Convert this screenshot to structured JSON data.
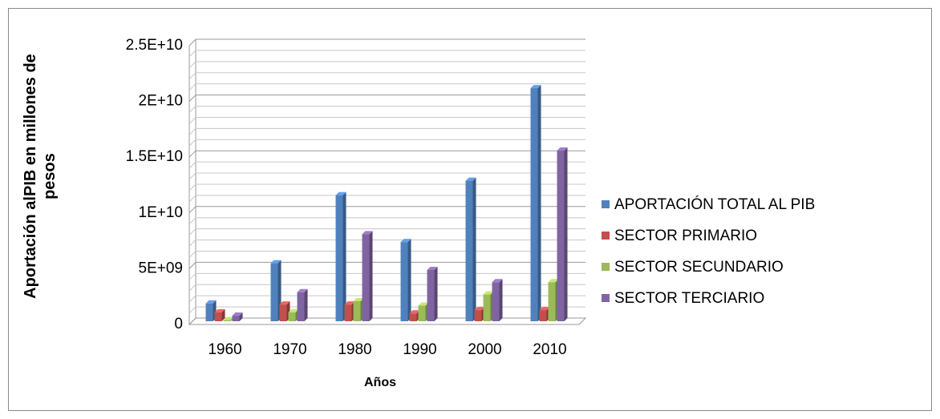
{
  "chart_data": {
    "type": "bar3d",
    "xlabel": "Años",
    "ylabel": "Aportación alPIB en millones de pesos",
    "categories": [
      "1960",
      "1970",
      "1980",
      "1990",
      "2000",
      "2010"
    ],
    "series": [
      {
        "name": "APORTACIÓN TOTAL AL PIB",
        "color": "#4f81bd",
        "values": [
          1600000000,
          5200000000,
          11300000000,
          7100000000,
          12600000000,
          20900000000
        ]
      },
      {
        "name": "SECTOR PRIMARIO",
        "color": "#c0504d",
        "values": [
          800000000,
          1500000000,
          1500000000,
          700000000,
          1000000000,
          1000000000
        ]
      },
      {
        "name": "SECTOR SECUNDARIO",
        "color": "#9bbb59",
        "values": [
          100000000,
          800000000,
          1800000000,
          1400000000,
          2400000000,
          3500000000
        ]
      },
      {
        "name": "SECTOR TERCIARIO",
        "color": "#8064a2",
        "values": [
          500000000,
          2600000000,
          7800000000,
          4600000000,
          3500000000,
          15300000000
        ]
      }
    ],
    "ylim": [
      0,
      25000000000
    ],
    "yticks": [
      0,
      {
        "value": 5000000000,
        "label": "5E+09"
      },
      {
        "value": 10000000000,
        "label": "1E+10"
      },
      {
        "value": 15000000000,
        "label": "1.5E+10"
      },
      {
        "value": 20000000000,
        "label": "2E+10"
      },
      {
        "value": 25000000000,
        "label": "2.5E+10"
      }
    ],
    "yminorticks": [
      1000000000,
      2000000000,
      3000000000,
      4000000000,
      6000000000,
      7000000000,
      8000000000,
      9000000000,
      11000000000,
      12000000000,
      13000000000,
      14000000000,
      16000000000,
      17000000000,
      18000000000,
      19000000000,
      21000000000,
      22000000000,
      23000000000,
      24000000000
    ],
    "grid": true,
    "legend": "right"
  }
}
